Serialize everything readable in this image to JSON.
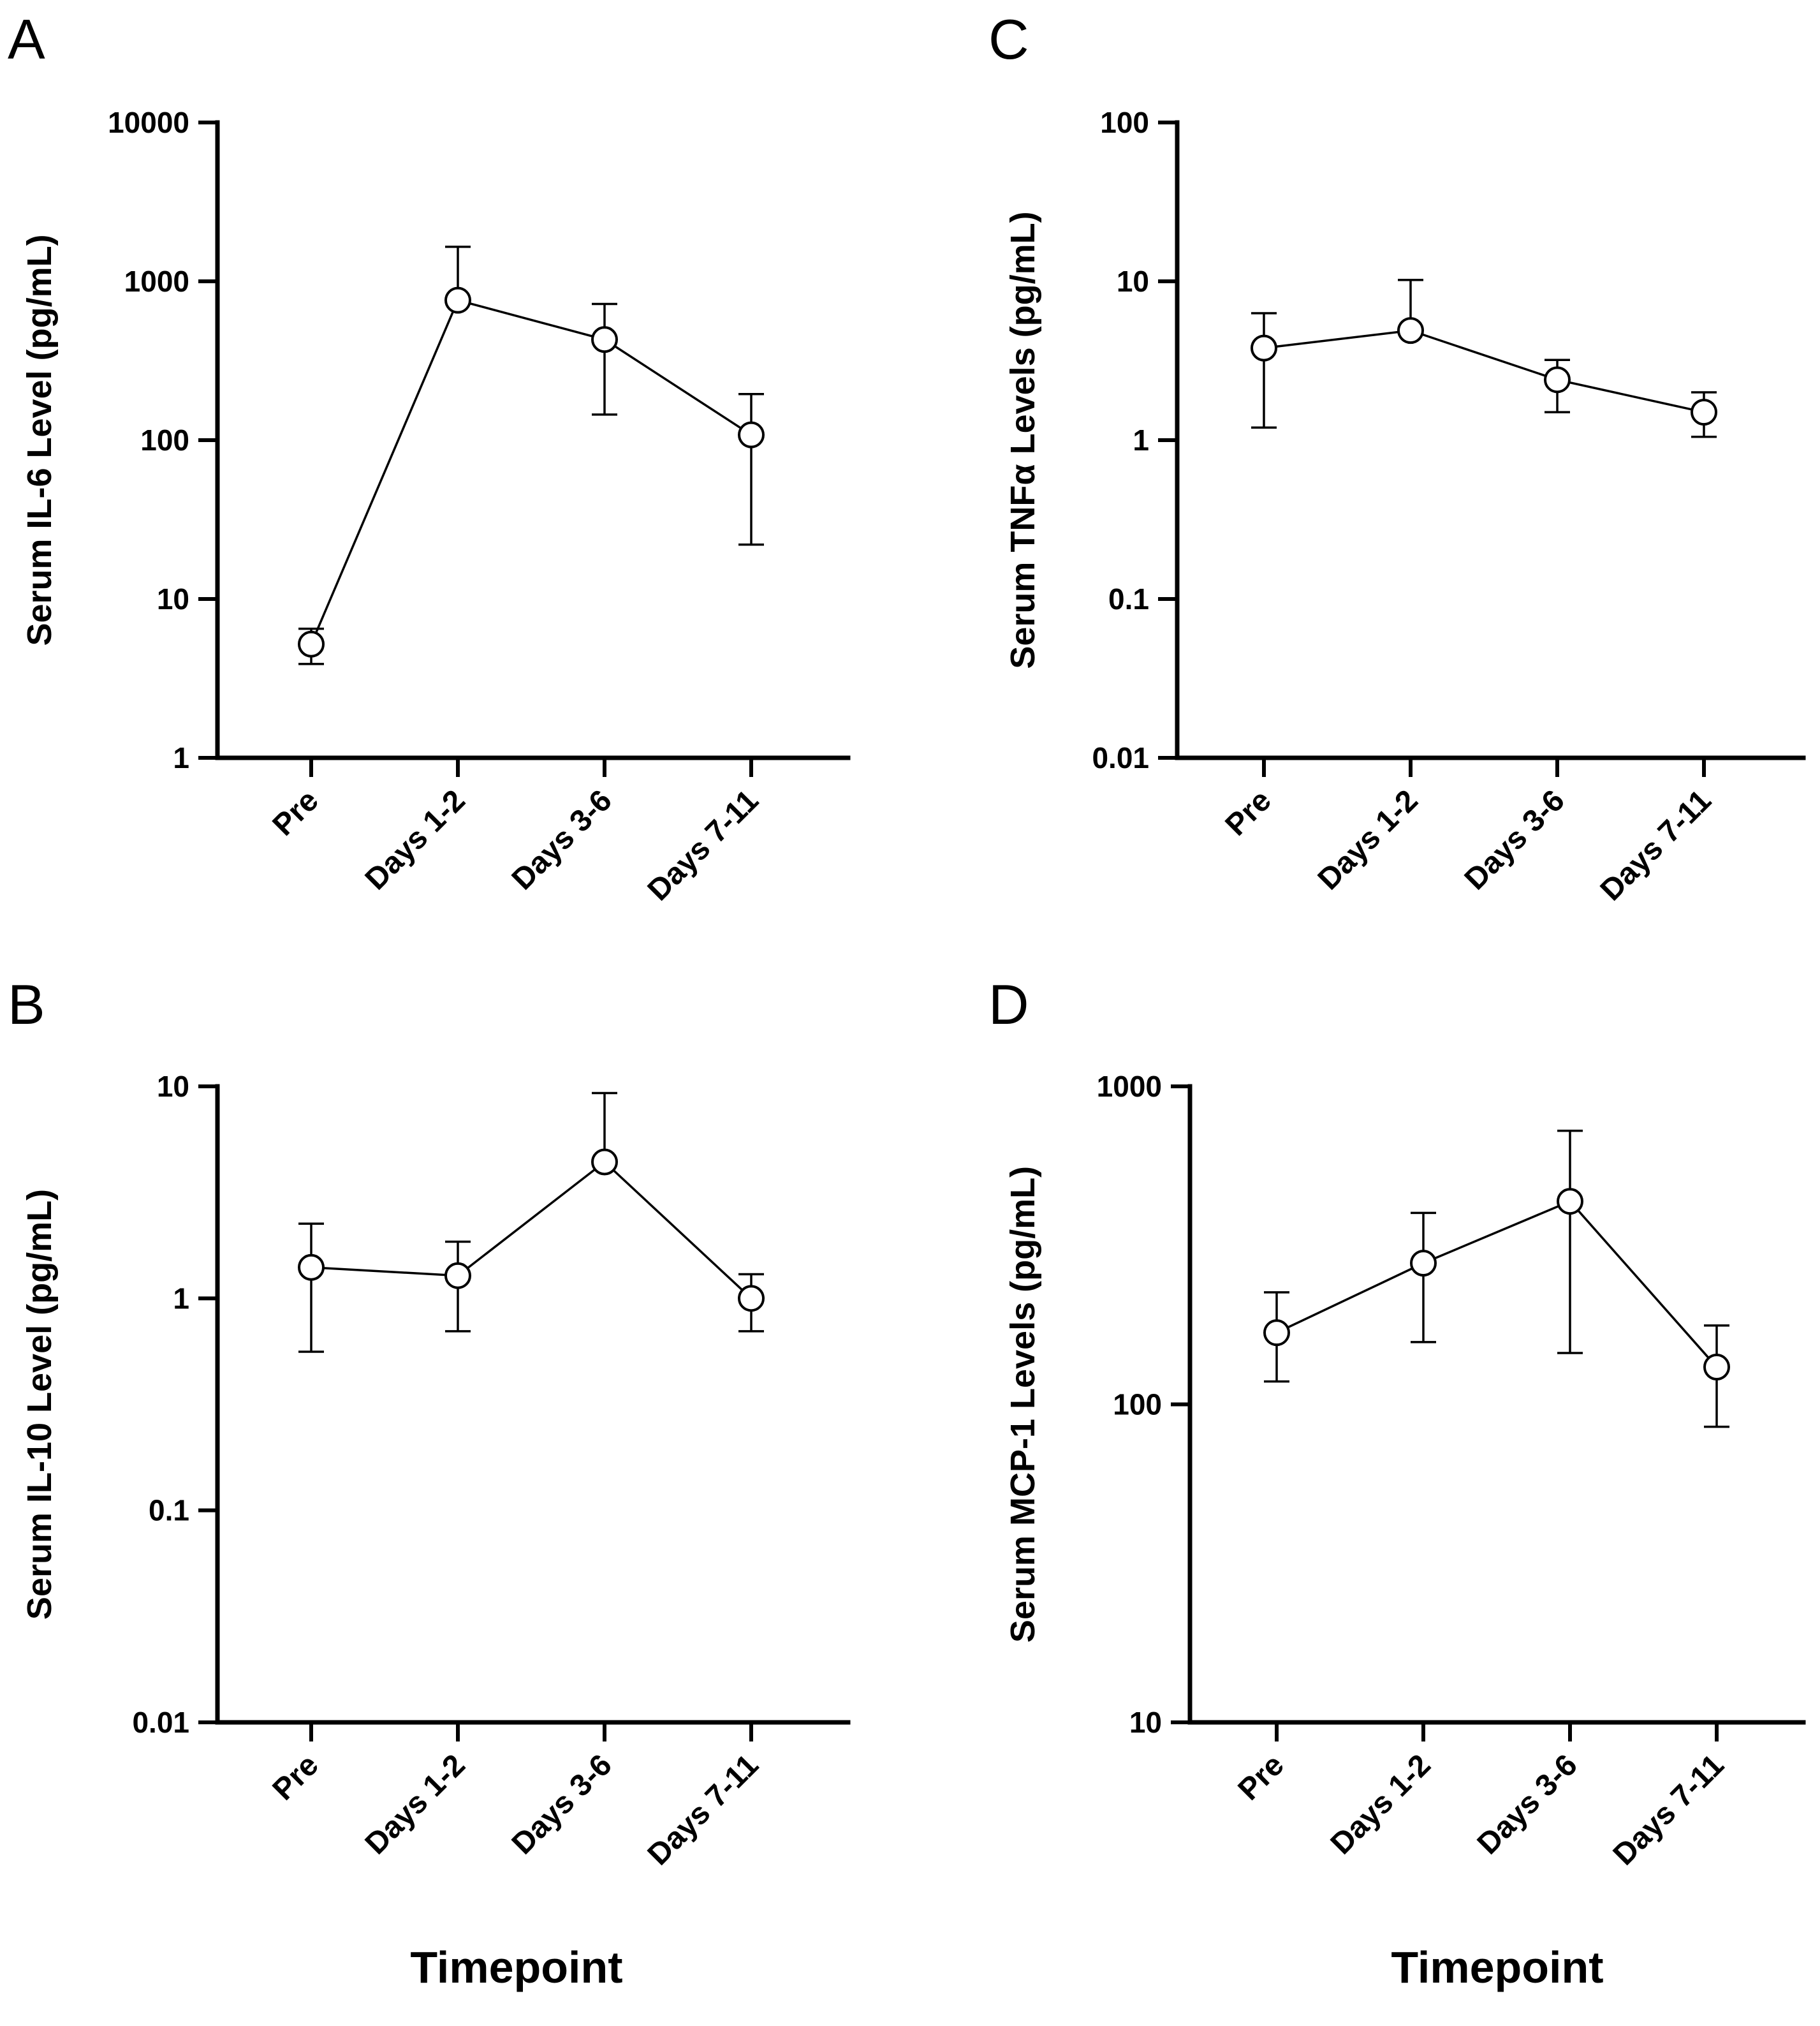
{
  "chart_data": [
    {
      "panel": "A",
      "type": "line",
      "scale": "log",
      "categories": [
        "Pre",
        "Days 1-2",
        "Days 3-6",
        "Days 7-11"
      ],
      "values": [
        5.2,
        760,
        430,
        108
      ],
      "error_low": [
        3.9,
        750,
        145,
        22
      ],
      "error_high": [
        6.5,
        1650,
        720,
        195
      ],
      "ylabel": "Serum  IL-6 Level (pg/mL)",
      "xlabel": "",
      "ylim": [
        1,
        10000
      ],
      "y_ticks": [
        1,
        10,
        100,
        1000,
        10000
      ],
      "y_tick_labels": [
        "1",
        "10",
        "100",
        "1000",
        "10000"
      ]
    },
    {
      "panel": "B",
      "type": "line",
      "scale": "log",
      "categories": [
        "Pre",
        "Days 1-2",
        "Days 3-6",
        "Days 7-11"
      ],
      "values": [
        1.4,
        1.28,
        4.4,
        1.0
      ],
      "error_low": [
        0.56,
        0.7,
        4.4,
        0.7
      ],
      "error_high": [
        2.25,
        1.85,
        9.3,
        1.3
      ],
      "ylabel": "Serum IL-10 Level (pg/mL)",
      "xlabel": "Timepoint",
      "ylim": [
        0.01,
        10
      ],
      "y_ticks": [
        0.01,
        0.1,
        1,
        10
      ],
      "y_tick_labels": [
        "0.01",
        "0.1",
        "1",
        "10"
      ]
    },
    {
      "panel": "C",
      "type": "line",
      "scale": "log",
      "categories": [
        "Pre",
        "Days 1-2",
        "Days 3-6",
        "Days 7-11"
      ],
      "values": [
        3.8,
        4.9,
        2.4,
        1.5
      ],
      "error_low": [
        1.2,
        4.9,
        1.5,
        1.05
      ],
      "error_high": [
        6.3,
        10.2,
        3.2,
        2.0
      ],
      "ylabel": "Serum TNFα Levels (pg/mL)",
      "xlabel": "",
      "ylim": [
        0.01,
        100
      ],
      "y_ticks": [
        0.01,
        0.1,
        1,
        10,
        100
      ],
      "y_tick_labels": [
        "0.01",
        "0.1",
        "1",
        "10",
        "100"
      ]
    },
    {
      "panel": "D",
      "type": "line",
      "scale": "log",
      "categories": [
        "Pre",
        "Days 1-2",
        "Days 3-6",
        "Days 7-11"
      ],
      "values": [
        168,
        278,
        435,
        131
      ],
      "error_low": [
        118,
        157,
        145,
        85
      ],
      "error_high": [
        225,
        400,
        725,
        177
      ],
      "ylabel": "Serum  MCP-1  Levels (pg/mL)",
      "xlabel": "Timepoint",
      "ylim": [
        10,
        1000
      ],
      "y_ticks": [
        10,
        100,
        1000
      ],
      "y_tick_labels": [
        "10",
        "100",
        "1000"
      ]
    }
  ]
}
